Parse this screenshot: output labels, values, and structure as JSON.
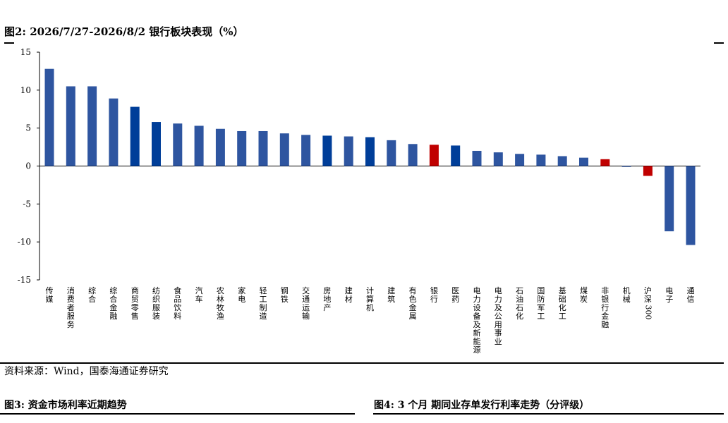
{
  "figure": {
    "title": "图2:  2026/7/27-2026/8/2 银行板块表现（%）",
    "source": "资料来源：Wind，国泰海通证券研究"
  },
  "next_figures": {
    "fig3_title": "图3:  资金市场利率近期趋势",
    "fig4_title": "图4:  3 个月 期同业存单发行利率走势（分评级）"
  },
  "colors": {
    "default_bar": "#2E55A0",
    "highlight_blue": "#003E99",
    "highlight_red": "#C00000"
  },
  "chart_data": {
    "type": "bar",
    "title": "2026/7/27-2026/8/2 银行板块表现（%）",
    "xlabel": "",
    "ylabel": "",
    "ylim": [
      -15,
      15
    ],
    "yticks": [
      15,
      10,
      5,
      0,
      -5,
      -10,
      -15
    ],
    "grid": false,
    "legend": "none",
    "categories": [
      "传媒",
      "消费者服务",
      "综合",
      "综合金融",
      "商贸零售",
      "纺织服装",
      "食品饮料",
      "汽车",
      "农林牧渔",
      "家电",
      "轻工制造",
      "钢铁",
      "交通运输",
      "房地产",
      "建材",
      "计算机",
      "建筑",
      "有色金属",
      "银行",
      "医药",
      "电力设备及新能源",
      "电力及公用事业",
      "石油石化",
      "国防军工",
      "基础化工",
      "煤炭",
      "非银行金融",
      "机械",
      "沪深300",
      "电子",
      "通信"
    ],
    "values": [
      12.8,
      10.5,
      10.5,
      8.9,
      7.8,
      5.8,
      5.6,
      5.3,
      4.9,
      4.6,
      4.6,
      4.3,
      4.1,
      4.0,
      3.9,
      3.8,
      3.4,
      2.9,
      2.8,
      2.7,
      2.0,
      1.8,
      1.6,
      1.5,
      1.3,
      1.1,
      0.9,
      -0.1,
      -1.3,
      -8.6,
      -10.4
    ],
    "bar_color_keys": [
      "default",
      "default",
      "default",
      "default",
      "blue",
      "blue",
      "default",
      "default",
      "default",
      "default",
      "default",
      "default",
      "default",
      "blue",
      "default",
      "blue",
      "default",
      "default",
      "red",
      "blue",
      "default",
      "default",
      "default",
      "default",
      "default",
      "default",
      "red",
      "default",
      "red",
      "default",
      "default"
    ]
  }
}
